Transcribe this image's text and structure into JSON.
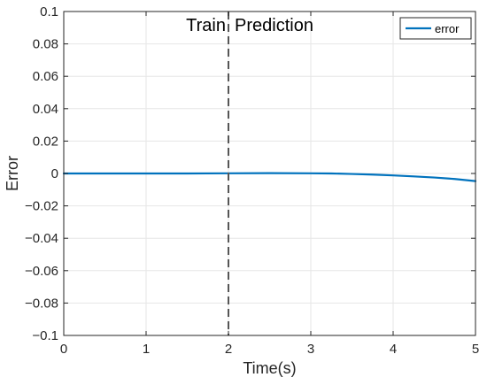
{
  "chart_data": {
    "type": "line",
    "title": "",
    "xlabel": "Time(s)",
    "ylabel": "Error",
    "xlim": [
      0,
      5
    ],
    "ylim": [
      -0.1,
      0.1
    ],
    "xticks": [
      0,
      1,
      2,
      3,
      4,
      5
    ],
    "xtick_labels": [
      "0",
      "1",
      "2",
      "3",
      "4",
      "5"
    ],
    "yticks": [
      -0.1,
      -0.08,
      -0.06,
      -0.04,
      -0.02,
      0,
      0.02,
      0.04,
      0.06,
      0.08,
      0.1
    ],
    "ytick_labels": [
      "−0.1",
      "−0.08",
      "−0.06",
      "−0.04",
      "−0.02",
      "0",
      "0.02",
      "0.04",
      "0.06",
      "0.08",
      "0.1"
    ],
    "grid": true,
    "legend_position": "top-right",
    "series": [
      {
        "name": "error",
        "color": "#0072BD",
        "x": [
          0,
          0.5,
          1,
          1.5,
          2,
          2.5,
          3,
          3.25,
          3.5,
          3.75,
          4,
          4.25,
          4.5,
          4.75,
          5
        ],
        "y": [
          0,
          0,
          0,
          0,
          0.0001,
          0.0002,
          0.0001,
          0,
          -0.0003,
          -0.0007,
          -0.0012,
          -0.0018,
          -0.0025,
          -0.0034,
          -0.0047
        ]
      }
    ],
    "annotations": {
      "divider_x": 2,
      "divider_color": "#555555",
      "left_label": "Train",
      "right_label": "Prediction"
    },
    "colors": {
      "grid": "#e6e6e6",
      "axis": "#262626"
    }
  }
}
